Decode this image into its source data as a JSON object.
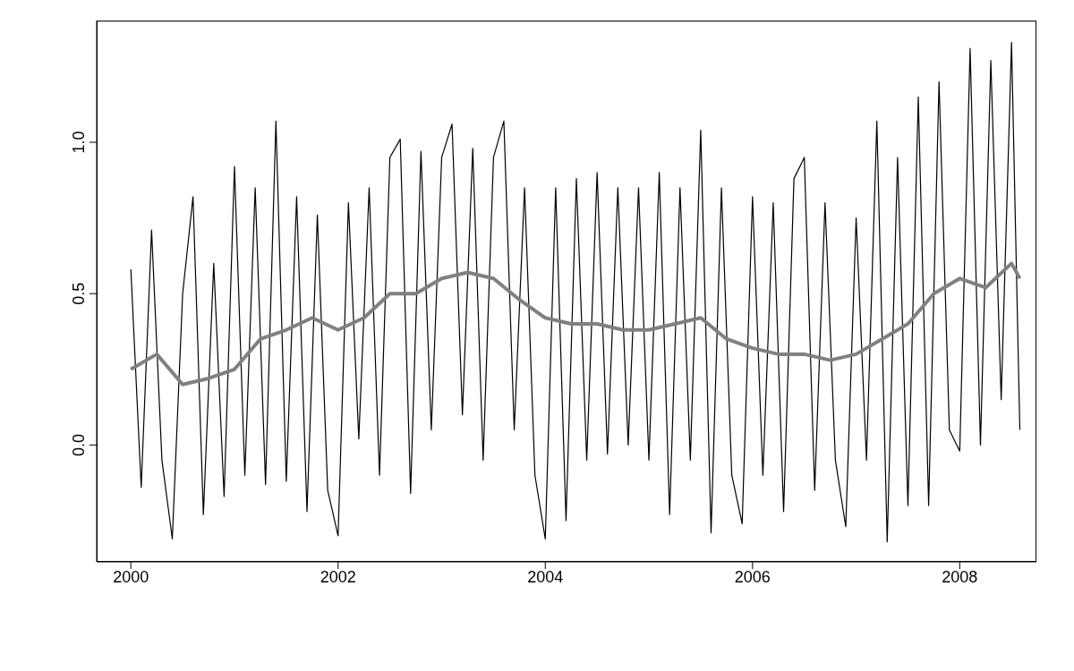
{
  "chart_data": {
    "type": "line",
    "xlim": [
      1999.67,
      2008.74
    ],
    "xticks": [
      2000,
      2002,
      2004,
      2006,
      2008
    ],
    "ylim": [
      -0.386,
      1.402
    ],
    "yticks": [
      {
        "value": 0,
        "label": "0.0"
      },
      {
        "value": 0.5,
        "label": "0.5"
      },
      {
        "value": 1,
        "label": "1.0"
      }
    ],
    "marker": "none",
    "line_style": "solid",
    "series": [
      {
        "color": "#000000",
        "x": [
          2000.0,
          2000.1,
          2000.2,
          2000.3,
          2000.4,
          2000.5,
          2000.6,
          2000.7,
          2000.8,
          2000.9,
          2001.0,
          2001.1,
          2001.2,
          2001.3,
          2001.4,
          2001.5,
          2001.6,
          2001.7,
          2001.8,
          2001.9,
          2002.0,
          2002.1,
          2002.2,
          2002.3,
          2002.4,
          2002.5,
          2002.6,
          2002.7,
          2002.8,
          2002.9,
          2003.0,
          2003.1,
          2003.2,
          2003.3,
          2003.4,
          2003.5,
          2003.6,
          2003.7,
          2003.8,
          2003.9,
          2004.0,
          2004.1,
          2004.2,
          2004.3,
          2004.4,
          2004.5,
          2004.6,
          2004.7,
          2004.8,
          2004.9,
          2005.0,
          2005.1,
          2005.2,
          2005.3,
          2005.4,
          2005.5,
          2005.6,
          2005.7,
          2005.8,
          2005.9,
          2006.0,
          2006.1,
          2006.2,
          2006.3,
          2006.4,
          2006.5,
          2006.6,
          2006.7,
          2006.8,
          2006.9,
          2007.0,
          2007.1,
          2007.2,
          2007.3,
          2007.4,
          2007.5,
          2007.6,
          2007.7,
          2007.8,
          2007.9,
          2008.0,
          2008.1,
          2008.2,
          2008.3,
          2008.4,
          2008.5,
          2008.58
        ],
        "values": [
          0.58,
          -0.14,
          0.71,
          -0.05,
          -0.31,
          0.5,
          0.82,
          -0.23,
          0.6,
          -0.17,
          0.92,
          -0.1,
          0.85,
          -0.13,
          1.07,
          -0.12,
          0.82,
          -0.22,
          0.76,
          -0.15,
          -0.3,
          0.8,
          0.02,
          0.85,
          -0.1,
          0.95,
          1.01,
          -0.16,
          0.97,
          0.05,
          0.95,
          1.06,
          0.1,
          0.98,
          -0.05,
          0.95,
          1.07,
          0.05,
          0.85,
          -0.1,
          -0.31,
          0.85,
          -0.25,
          0.88,
          -0.05,
          0.9,
          -0.03,
          0.85,
          0.0,
          0.85,
          -0.05,
          0.9,
          -0.23,
          0.85,
          -0.05,
          1.04,
          -0.29,
          0.85,
          -0.1,
          -0.26,
          0.82,
          -0.1,
          0.8,
          -0.22,
          0.88,
          0.95,
          -0.15,
          0.8,
          -0.05,
          -0.27,
          0.75,
          -0.05,
          1.07,
          -0.32,
          0.95,
          -0.2,
          1.15,
          -0.2,
          1.2,
          0.05,
          -0.02,
          1.31,
          0.0,
          1.27,
          0.15,
          1.33,
          0.05
        ]
      },
      {
        "color": "#808080",
        "x": [
          2000.0,
          2000.25,
          2000.5,
          2000.75,
          2001.0,
          2001.25,
          2001.5,
          2001.75,
          2002.0,
          2002.25,
          2002.5,
          2002.75,
          2003.0,
          2003.25,
          2003.5,
          2003.75,
          2004.0,
          2004.25,
          2004.5,
          2004.75,
          2005.0,
          2005.25,
          2005.5,
          2005.75,
          2006.0,
          2006.25,
          2006.5,
          2006.75,
          2007.0,
          2007.25,
          2007.5,
          2007.75,
          2008.0,
          2008.25,
          2008.5,
          2008.58
        ],
        "values": [
          0.25,
          0.3,
          0.2,
          0.22,
          0.25,
          0.35,
          0.38,
          0.42,
          0.38,
          0.42,
          0.5,
          0.5,
          0.55,
          0.57,
          0.55,
          0.48,
          0.42,
          0.4,
          0.4,
          0.38,
          0.38,
          0.4,
          0.42,
          0.35,
          0.32,
          0.3,
          0.3,
          0.28,
          0.3,
          0.35,
          0.4,
          0.5,
          0.55,
          0.52,
          0.6,
          0.55
        ]
      }
    ]
  }
}
